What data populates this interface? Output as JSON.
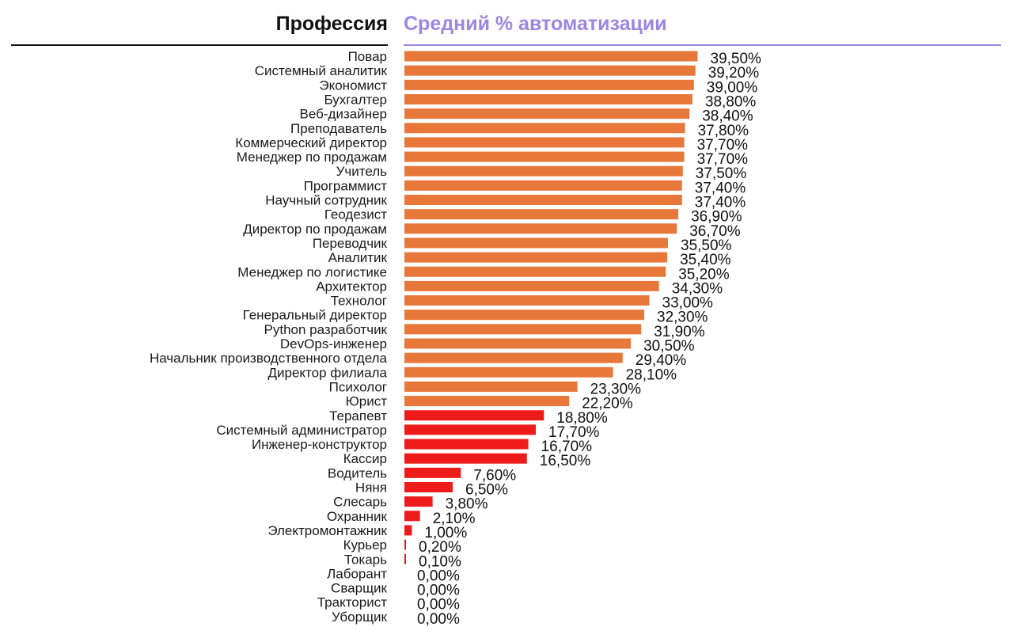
{
  "header": {
    "left_title": "Профессия",
    "right_title": "Средний % автоматизации"
  },
  "colors": {
    "high": "#e8773a",
    "low": "#ee1b1b",
    "accent": "#9b86e0",
    "left_rule": "#111111"
  },
  "chart_data": {
    "type": "bar",
    "orientation": "horizontal",
    "xlim": [
      0,
      40
    ],
    "grid": false,
    "legend": "none",
    "color_threshold": 20,
    "categories": [
      "Повар",
      "Системный аналитик",
      "Экономист",
      "Бухгалтер",
      "Веб-дизайнер",
      "Преподаватель",
      "Коммерческий директор",
      "Менеджер по продажам",
      "Учитель",
      "Программист",
      "Научный сотрудник",
      "Геодезист",
      "Директор по продажам",
      "Переводчик",
      "Аналитик",
      "Менеджер по логистике",
      "Архитектор",
      "Технолог",
      "Генеральный директор",
      "Python разработчик",
      "DevOps-инженер",
      "Начальник производственного отдела",
      "Директор филиала",
      "Психолог",
      "Юрист",
      "Терапевт",
      "Системный администратор",
      "Инженер-конструктор",
      "Кассир",
      "Водитель",
      "Няня",
      "Слесарь",
      "Охранник",
      "Электромонтажник",
      "Курьер",
      "Токарь",
      "Лаборант",
      "Сварщик",
      "Тракторист",
      "Уборщик"
    ],
    "values": [
      39.5,
      39.2,
      39.0,
      38.8,
      38.4,
      37.8,
      37.7,
      37.7,
      37.5,
      37.4,
      37.4,
      36.9,
      36.7,
      35.5,
      35.4,
      35.2,
      34.3,
      33.0,
      32.3,
      31.9,
      30.5,
      29.4,
      28.1,
      23.3,
      22.2,
      18.8,
      17.7,
      16.7,
      16.5,
      7.6,
      6.5,
      3.8,
      2.1,
      1.0,
      0.2,
      0.1,
      0.0,
      0.0,
      0.0,
      0.0
    ],
    "value_labels": [
      "39,50%",
      "39,20%",
      "39,00%",
      "38,80%",
      "38,40%",
      "37,80%",
      "37,70%",
      "37,70%",
      "37,50%",
      "37,40%",
      "37,40%",
      "36,90%",
      "36,70%",
      "35,50%",
      "35,40%",
      "35,20%",
      "34,30%",
      "33,00%",
      "32,30%",
      "31,90%",
      "30,50%",
      "29,40%",
      "28,10%",
      "23,30%",
      "22,20%",
      "18,80%",
      "17,70%",
      "16,70%",
      "16,50%",
      "7,60%",
      "6,50%",
      "3,80%",
      "2,10%",
      "1,00%",
      "0,20%",
      "0,10%",
      "0,00%",
      "0,00%",
      "0,00%",
      "0,00%"
    ]
  }
}
